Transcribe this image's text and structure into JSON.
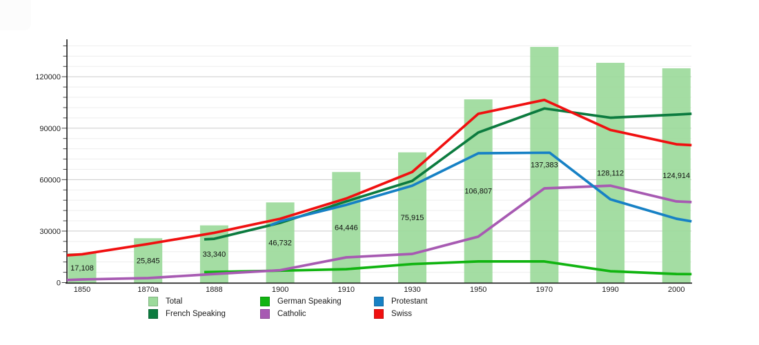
{
  "chart_data": {
    "type": "bar+line",
    "x_axis": {
      "categories": [
        "1850",
        "1870a",
        "1888",
        "1900",
        "1910",
        "1930",
        "1950",
        "1970",
        "1990",
        "2000"
      ]
    },
    "y_axis": {
      "max": 141000,
      "minor_step": 6000,
      "grid": "on",
      "ticks": [
        {
          "value": 0,
          "label": "0"
        },
        {
          "value": 30000,
          "label": "30000"
        },
        {
          "value": 60000,
          "label": "60000"
        },
        {
          "value": 90000,
          "label": "90000"
        },
        {
          "value": 120000,
          "label": "120000"
        }
      ]
    },
    "bar_series": {
      "name": "Total",
      "color": "#9cda9b",
      "values": [
        17108,
        25845,
        33340,
        46732,
        64446,
        75915,
        106807,
        137383,
        128112,
        124914
      ],
      "value_labels": [
        "17,108",
        "25,845",
        "33,340",
        "46,732",
        "64,446",
        "75,915",
        "106,807",
        "137,383",
        "128,112",
        "124,914"
      ]
    },
    "line_series": [
      {
        "name": "German Speaking",
        "color": "#11b411",
        "points": [
          [
            1.85,
            6100
          ],
          [
            2,
            6200
          ],
          [
            3,
            6900
          ],
          [
            4,
            7800
          ],
          [
            5,
            10800
          ],
          [
            6,
            12300
          ],
          [
            7,
            12300
          ],
          [
            8,
            6600
          ],
          [
            9,
            5000
          ],
          [
            9.23,
            4900
          ]
        ]
      },
      {
        "name": "French Speaking",
        "color": "#0c7b3f",
        "points": [
          [
            1.85,
            25200
          ],
          [
            2,
            25500
          ],
          [
            3,
            34800
          ],
          [
            4,
            47300
          ],
          [
            5,
            59300
          ],
          [
            6,
            87500
          ],
          [
            7,
            101500
          ],
          [
            8,
            96100
          ],
          [
            9,
            97900
          ],
          [
            9.23,
            98400
          ]
        ]
      },
      {
        "name": "Catholic",
        "color": "#a75ab2",
        "points": [
          [
            -0.23,
            1500
          ],
          [
            0,
            1800
          ],
          [
            1,
            2600
          ],
          [
            2,
            5000
          ],
          [
            3,
            7200
          ],
          [
            4,
            14700
          ],
          [
            5,
            16700
          ],
          [
            6,
            26800
          ],
          [
            7,
            54900
          ],
          [
            8,
            56500
          ],
          [
            9,
            47300
          ],
          [
            9.23,
            46900
          ]
        ]
      },
      {
        "name": "Protestant",
        "color": "#1781c5",
        "points": [
          [
            2.85,
            33400
          ],
          [
            3,
            35700
          ],
          [
            4,
            45300
          ],
          [
            5,
            56500
          ],
          [
            6,
            75400
          ],
          [
            7.08,
            75700
          ],
          [
            8,
            48500
          ],
          [
            9,
            37200
          ],
          [
            9.23,
            35700
          ]
        ]
      },
      {
        "name": "Swiss",
        "color": "#f01010",
        "points": [
          [
            -0.23,
            15900
          ],
          [
            0,
            16500
          ],
          [
            1,
            22500
          ],
          [
            2,
            29000
          ],
          [
            3,
            37200
          ],
          [
            4,
            49000
          ],
          [
            5,
            64500
          ],
          [
            6,
            98400
          ],
          [
            7,
            106500
          ],
          [
            8,
            89000
          ],
          [
            9,
            80600
          ],
          [
            9.23,
            80100
          ]
        ]
      }
    ],
    "legend": {
      "items": [
        {
          "label": "Total",
          "color": "#9cda9b"
        },
        {
          "label": "German Speaking",
          "color": "#11b411"
        },
        {
          "label": "Protestant",
          "color": "#1781c5"
        },
        {
          "label": "French Speaking",
          "color": "#0c7b3f"
        },
        {
          "label": "Catholic",
          "color": "#a75ab2"
        },
        {
          "label": "Swiss",
          "color": "#f01010"
        }
      ]
    },
    "style": {
      "grid_minor_color": "#ededed",
      "grid_major_color": "#cbcbcb",
      "axis_color": "#1a1a1a",
      "text_color": "#1a1a1a"
    }
  }
}
